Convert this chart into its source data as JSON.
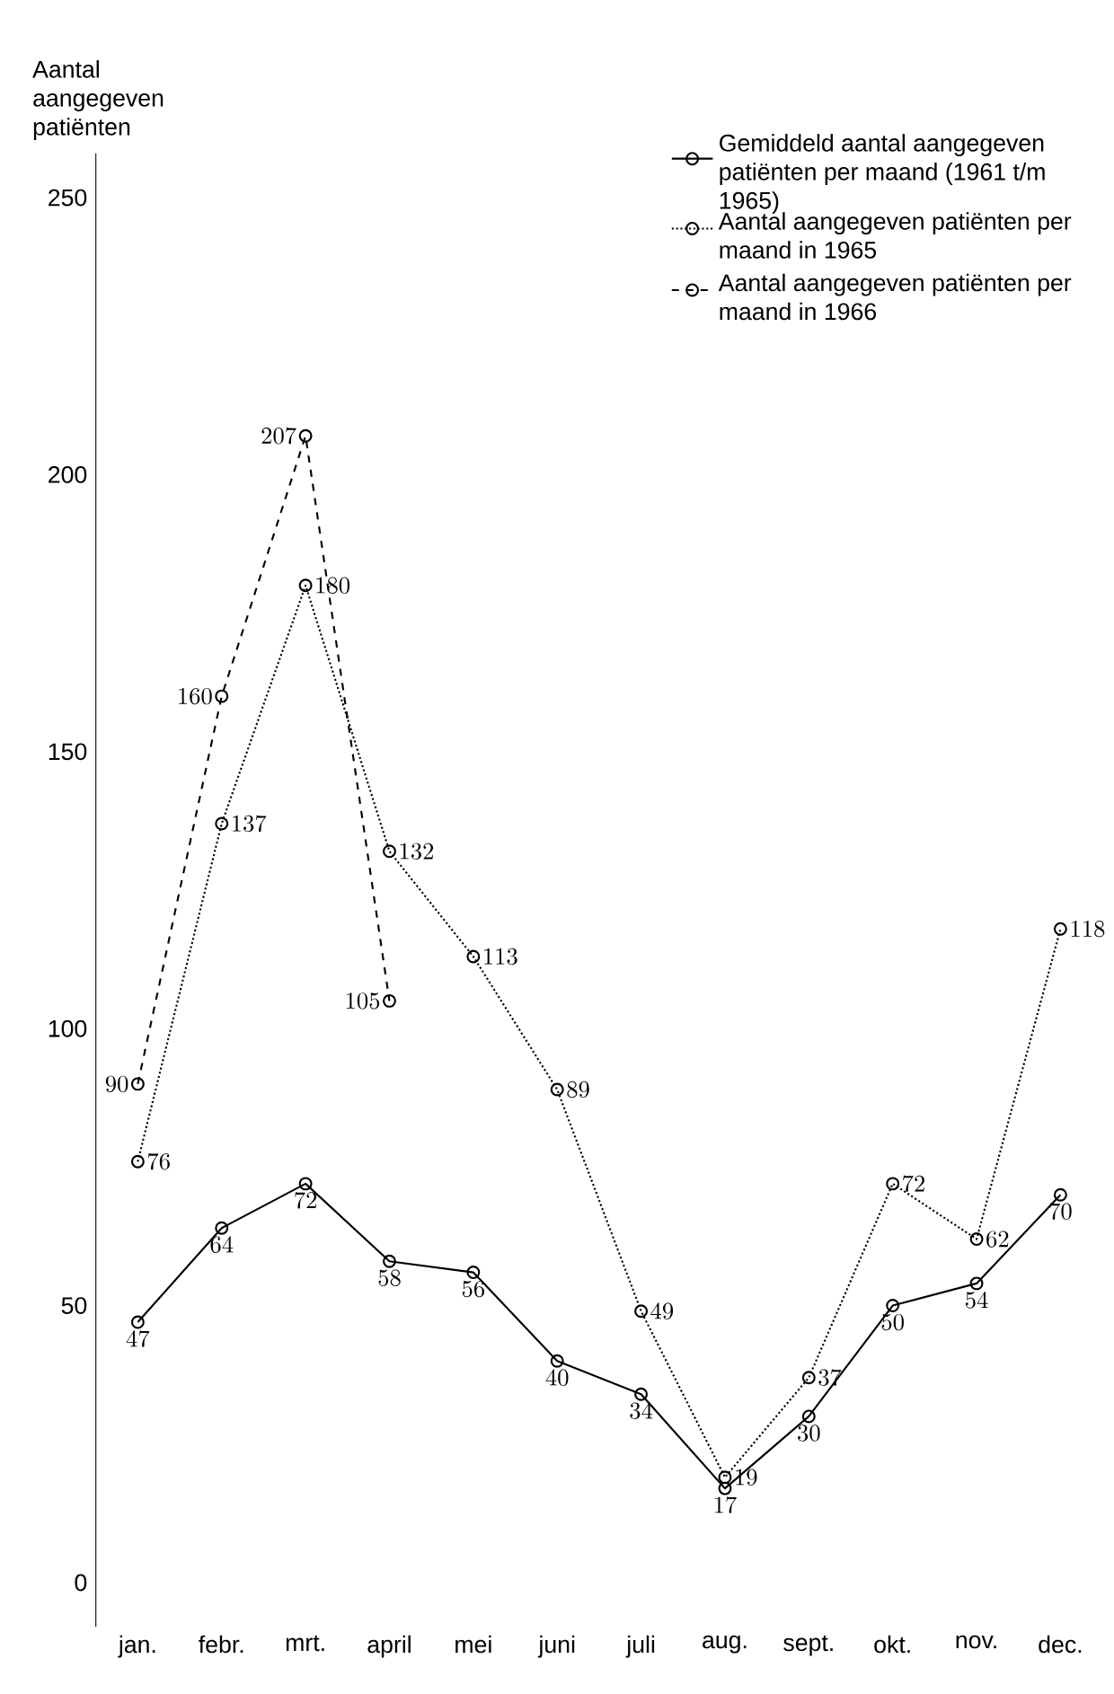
{
  "chart_data": {
    "type": "line",
    "ylabel": "Aantal aangegeven patiënten",
    "categories": [
      "jan.",
      "febr.",
      "mrt.",
      "april",
      "mei",
      "juni",
      "juli",
      "aug.",
      "sept.",
      "okt.",
      "nov.",
      "dec."
    ],
    "series": [
      {
        "name": "Gemiddeld aantal aangegeven patiënten per maand (1961 t/m 1965)",
        "color": "#000000",
        "line_style": "solid",
        "values": [
          47,
          64,
          72,
          58,
          56,
          40,
          34,
          17,
          30,
          50,
          54,
          70
        ]
      },
      {
        "name": "Aantal aangegeven patiënten per maand in 1965",
        "color": "#000000",
        "line_style": "dotted",
        "values": [
          76,
          137,
          180,
          132,
          113,
          89,
          49,
          19,
          37,
          72,
          62,
          118
        ]
      },
      {
        "name": "Aantal aangegeven patiënten per maand in 1966",
        "color": "#000000",
        "line_style": "dashed",
        "values": [
          90,
          160,
          207,
          105,
          null,
          null,
          null,
          null,
          null,
          null,
          null,
          null
        ]
      }
    ],
    "ylim": [
      -8,
      258
    ],
    "yticks": [
      0,
      50,
      100,
      150,
      200,
      250
    ],
    "marker": "circle",
    "legend": "top right",
    "data_labels": true,
    "grid": false
  }
}
